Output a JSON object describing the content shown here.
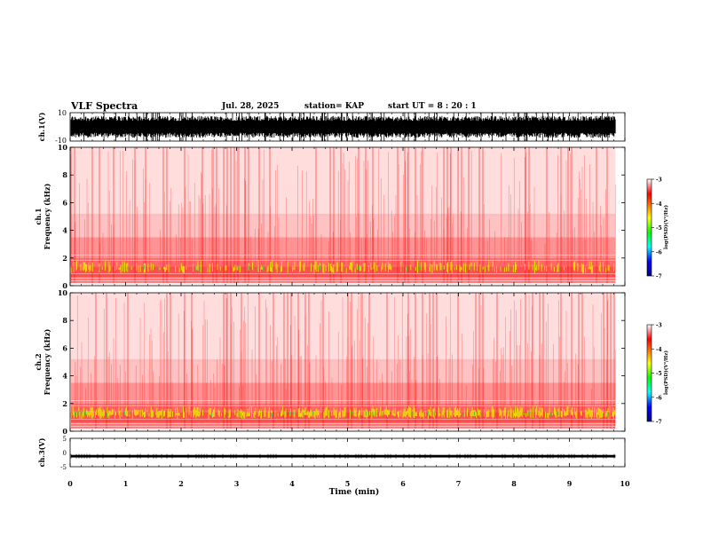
{
  "header": {
    "title": "VLF Spectra",
    "date": "Jul. 28, 2025",
    "station": "station= KAP",
    "start_ut": "start UT =  8 : 20 : 1"
  },
  "chart_data": [
    {
      "type": "line",
      "id": "ch1-waveform",
      "ylabel": "ch.1(V)",
      "ylim": [
        -10,
        10
      ],
      "ytick_labels": [
        "10",
        "-10"
      ],
      "xlim": [
        0,
        10
      ],
      "data_end": 9.83,
      "description_values": {
        "typical_low": -7,
        "typical_high": 7
      }
    },
    {
      "type": "heatmap",
      "id": "ch1-spectrogram",
      "ylabel_line1": "ch.1",
      "ylabel_line2": "Frequency (kHz)",
      "ylim": [
        0,
        10
      ],
      "yticks": [
        0,
        2,
        4,
        6,
        8,
        10
      ],
      "ytick_labels": [
        "0",
        "2",
        "4",
        "6",
        "8",
        "10"
      ],
      "xlim": [
        0,
        10
      ],
      "data_end": 9.83,
      "colorbar": {
        "min": -7,
        "max": -3,
        "ticks": [
          "-3",
          "-4",
          "-5",
          "-6",
          "-7"
        ],
        "label": "log(PSD)(V²/Hz)"
      }
    },
    {
      "type": "heatmap",
      "id": "ch2-spectrogram",
      "ylabel_line1": "ch.2",
      "ylabel_line2": "Frequency (kHz)",
      "ylim": [
        0,
        10
      ],
      "yticks": [
        0,
        2,
        4,
        6,
        8,
        10
      ],
      "ytick_labels": [
        "0",
        "2",
        "4",
        "6",
        "8",
        "10"
      ],
      "xlim": [
        0,
        10
      ],
      "data_end": 9.83,
      "colorbar": {
        "min": -7,
        "max": -3,
        "ticks": [
          "-3",
          "-4",
          "-5",
          "-6",
          "-7"
        ],
        "label": "log(PSD)(V²/Hz)"
      }
    },
    {
      "type": "line",
      "id": "ch3-waveform",
      "ylabel": "ch.3(V)",
      "ylim": [
        -5,
        5
      ],
      "ytick_labels": [
        "5",
        "0",
        "-5"
      ],
      "xlim": [
        0,
        10
      ],
      "data_end": 9.83,
      "description_values": {
        "level": -1.3
      }
    }
  ],
  "xaxis": {
    "label": "Time (min)",
    "ticks": [
      "0",
      "1",
      "2",
      "3",
      "4",
      "5",
      "6",
      "7",
      "8",
      "9",
      "10"
    ]
  },
  "colors": {
    "spec_low": "#0000ff",
    "spec_mid": "#00ff00",
    "spec_midhigh": "#ffff00",
    "spec_high": "#ff0000"
  }
}
